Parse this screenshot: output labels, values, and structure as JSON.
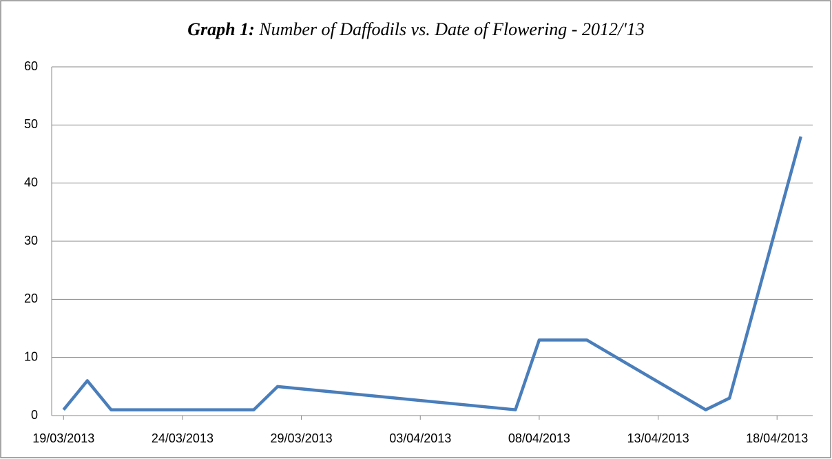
{
  "chart_data": {
    "type": "line",
    "title": [
      "Graph 1:",
      "Number of Daffodils vs. Date of Flowering - 2012/'13"
    ],
    "x": [
      "2013-03-19",
      "2013-03-20",
      "2013-03-21",
      "2013-03-27",
      "2013-03-28",
      "2013-04-07",
      "2013-04-08",
      "2013-04-10",
      "2013-04-15",
      "2013-04-16",
      "2013-04-19"
    ],
    "values": [
      1,
      6,
      1,
      1,
      5,
      1,
      13,
      13,
      1,
      3,
      48
    ],
    "color": "#4a7ebb",
    "xlim": [
      "2013-03-18T12:00:00Z",
      "2013-04-19T12:00:00Z"
    ],
    "xticks": [
      {
        "value": "2013-03-19",
        "label": "19/03/2013"
      },
      {
        "value": "2013-03-24",
        "label": "24/03/2013"
      },
      {
        "value": "2013-03-29",
        "label": "29/03/2013"
      },
      {
        "value": "2013-04-03",
        "label": "03/04/2013"
      },
      {
        "value": "2013-04-08",
        "label": "08/04/2013"
      },
      {
        "value": "2013-04-13",
        "label": "13/04/2013"
      },
      {
        "value": "2013-04-18",
        "label": "18/04/2013"
      }
    ],
    "ylim": [
      0,
      60
    ],
    "yticks": [
      0,
      10,
      20,
      30,
      40,
      50,
      60
    ],
    "grid": true
  }
}
